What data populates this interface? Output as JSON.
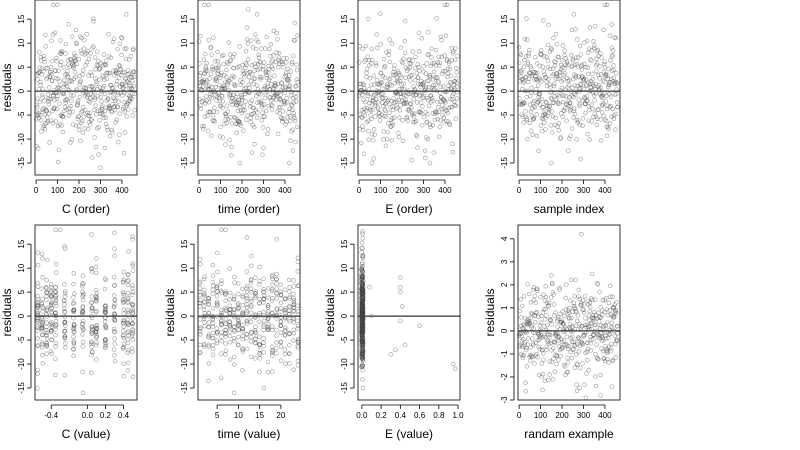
{
  "figure": {
    "background": "#ffffff",
    "point_color": "#444444",
    "point_style": "open circles, semi-transparent",
    "reference_line": 0
  },
  "chart_data": [
    {
      "type": "scatter",
      "xlabel": "C (order)",
      "ylabel": "residuals",
      "xlim": [
        -5,
        470
      ],
      "ylim": [
        -17.5,
        19
      ],
      "xticks": [
        0,
        100,
        200,
        300,
        400
      ],
      "yticks": [
        -15,
        -10,
        -5,
        0,
        5,
        10,
        15
      ],
      "zero_line": true,
      "pattern": {
        "kind": "index",
        "n": 460,
        "sd": 5.2,
        "clip": [
          -16,
          18
        ],
        "seed": 11
      },
      "highlights": {
        "x": [
          80,
          100,
          10,
          420,
          300
        ],
        "y": [
          18,
          18,
          -12,
          16,
          -16
        ]
      }
    },
    {
      "type": "scatter",
      "xlabel": "time (order)",
      "ylabel": "residuals",
      "xlim": [
        -5,
        470
      ],
      "ylim": [
        -17.5,
        19
      ],
      "xticks": [
        0,
        100,
        200,
        300,
        400
      ],
      "yticks": [
        -15,
        -10,
        -5,
        0,
        5,
        10,
        15
      ],
      "zero_line": true,
      "pattern": {
        "kind": "index",
        "n": 460,
        "sd": 5.2,
        "clip": [
          -16,
          18
        ],
        "seed": 23
      },
      "highlights": {
        "x": [
          25,
          45,
          270,
          190,
          420
        ],
        "y": [
          18,
          18,
          16,
          -15,
          -15
        ]
      }
    },
    {
      "type": "scatter",
      "xlabel": "E (order)",
      "ylabel": "residuals",
      "xlim": [
        -5,
        470
      ],
      "ylim": [
        -17.5,
        19
      ],
      "xticks": [
        0,
        100,
        200,
        300,
        400
      ],
      "yticks": [
        -15,
        -10,
        -5,
        0,
        5,
        10,
        15
      ],
      "zero_line": true,
      "pattern": {
        "kind": "index",
        "n": 460,
        "sd": 5.2,
        "clip": [
          -16,
          18
        ],
        "seed": 37
      },
      "highlights": {
        "x": [
          400,
          410,
          60,
          330
        ],
        "y": [
          18,
          18,
          -15,
          -15
        ]
      }
    },
    {
      "type": "scatter",
      "xlabel": "sample index",
      "ylabel": "residuals",
      "xlim": [
        -5,
        470
      ],
      "ylim": [
        -17.5,
        19
      ],
      "xticks": [
        0,
        100,
        200,
        300,
        400
      ],
      "yticks": [
        -15,
        -10,
        -5,
        0,
        5,
        10,
        15
      ],
      "zero_line": true,
      "pattern": {
        "kind": "index",
        "n": 460,
        "sd": 5.2,
        "clip": [
          -16,
          18
        ],
        "seed": 51
      },
      "highlights": {
        "x": [
          400,
          410,
          255,
          150
        ],
        "y": [
          18,
          18,
          16,
          -15
        ]
      }
    },
    {
      "type": "scatter",
      "xlabel": "C (value)",
      "ylabel": "residuals",
      "xlim": [
        -0.58,
        0.55
      ],
      "ylim": [
        -17.5,
        19
      ],
      "xticks": [
        -0.4,
        0.0,
        0.2,
        0.4
      ],
      "xtick_labels": [
        "-0.4",
        "0.0",
        "0.2",
        "0.4"
      ],
      "yticks": [
        -15,
        -10,
        -5,
        0,
        5,
        10,
        15
      ],
      "zero_line": true,
      "pattern": {
        "kind": "levels",
        "levels": [
          -0.55,
          -0.5,
          -0.45,
          -0.4,
          -0.35,
          -0.25,
          -0.15,
          -0.05,
          0.05,
          0.1,
          0.2,
          0.3,
          0.4,
          0.45,
          0.5
        ],
        "per_level": 28,
        "jitter": 0.006,
        "sd": 5.2,
        "clip": [
          -16,
          18
        ],
        "seed": 67
      },
      "highlights": {
        "x": [
          -0.35,
          -0.3,
          -0.55,
          0.5
        ],
        "y": [
          18,
          18,
          -12,
          16
        ]
      }
    },
    {
      "type": "scatter",
      "xlabel": "time (value)",
      "ylabel": "residuals",
      "xlim": [
        0.5,
        24.5
      ],
      "ylim": [
        -17.5,
        19
      ],
      "xticks": [
        5,
        10,
        15,
        20
      ],
      "yticks": [
        -15,
        -10,
        -5,
        0,
        5,
        10,
        15
      ],
      "zero_line": true,
      "pattern": {
        "kind": "levels",
        "levels": [
          1,
          2,
          3,
          4,
          5,
          6,
          7,
          8,
          9,
          10,
          11,
          12,
          13,
          14,
          15,
          16,
          17,
          18,
          19,
          20,
          21,
          22,
          23,
          24
        ],
        "per_level": 19,
        "jitter": 0.08,
        "sd": 5.2,
        "clip": [
          -16,
          18
        ],
        "seed": 83
      },
      "highlights": {
        "x": [
          6,
          7,
          19,
          16
        ],
        "y": [
          18,
          18,
          16,
          -15
        ]
      }
    },
    {
      "type": "scatter",
      "xlabel": "E (value)",
      "ylabel": "residuals",
      "xlim": [
        -0.04,
        1.02
      ],
      "ylim": [
        -17.5,
        19
      ],
      "xticks": [
        0.0,
        0.2,
        0.4,
        0.6,
        0.8,
        1.0
      ],
      "xtick_labels": [
        "0.0",
        "0.2",
        "0.4",
        "0.6",
        "0.8",
        "1.0"
      ],
      "yticks": [
        -15,
        -10,
        -5,
        0,
        5,
        10,
        15
      ],
      "zero_line": true,
      "pattern": {
        "kind": "levels",
        "levels": [
          0.0,
          0.01
        ],
        "per_level": 200,
        "jitter": 0.004,
        "sd": 5.2,
        "clip": [
          -15,
          18
        ],
        "seed": 97
      },
      "highlights": {
        "x": [
          0.08,
          0.1,
          0.3,
          0.35,
          0.4,
          0.4,
          0.4,
          0.42,
          0.4,
          0.45,
          0.6,
          0.95,
          0.97
        ],
        "y": [
          6,
          0,
          -8,
          -7,
          8,
          6,
          5,
          2,
          -1,
          -6,
          -2,
          -10,
          -11
        ]
      }
    },
    {
      "type": "scatter",
      "xlabel": "randam example",
      "ylabel": "residuals",
      "xlim": [
        -5,
        470
      ],
      "ylim": [
        -3,
        4.6
      ],
      "xticks": [
        0,
        100,
        200,
        300,
        400
      ],
      "yticks": [
        -3,
        -2,
        -1,
        0,
        1,
        2,
        3,
        4
      ],
      "zero_line": true,
      "pattern": {
        "kind": "index",
        "n": 460,
        "sd": 1.0,
        "clip": [
          -2.9,
          4.2
        ],
        "seed": 113
      },
      "highlights": {
        "x": [
          290,
          270,
          380
        ],
        "y": [
          4.2,
          -2.6,
          -2.8
        ]
      }
    }
  ]
}
